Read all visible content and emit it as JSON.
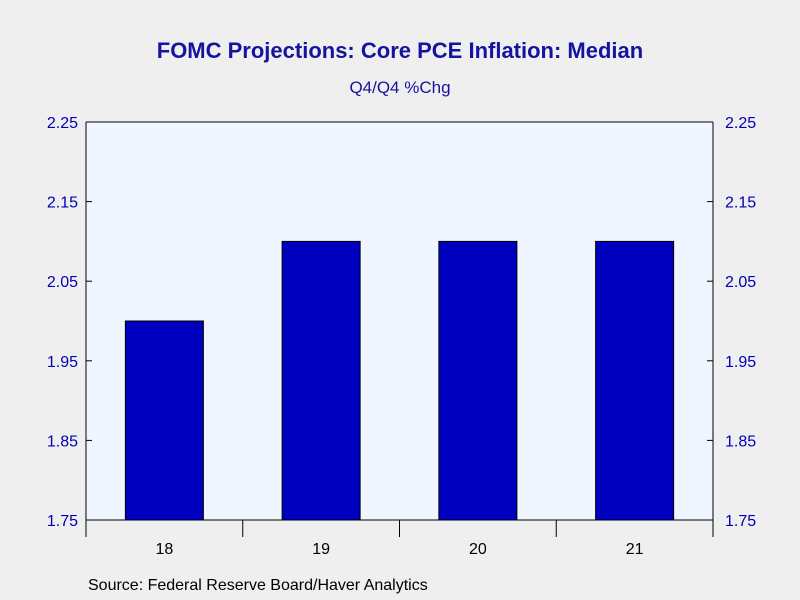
{
  "chart_data": {
    "type": "bar",
    "title": "FOMC Projections: Core PCE Inflation: Median",
    "subtitle": "Q4/Q4 %Chg",
    "categories": [
      "18",
      "19",
      "20",
      "21"
    ],
    "values": [
      2.0,
      2.1,
      2.1,
      2.1
    ],
    "ylim": [
      1.75,
      2.25
    ],
    "yticks": [
      "1.75",
      "1.85",
      "1.95",
      "2.05",
      "2.15",
      "2.25"
    ],
    "grid": false,
    "bar_color": "#0000c0",
    "plot_background": "#f0f6ff",
    "axis_color": "#000000",
    "source": "Source:  Federal Reserve Board/Haver Analytics"
  }
}
